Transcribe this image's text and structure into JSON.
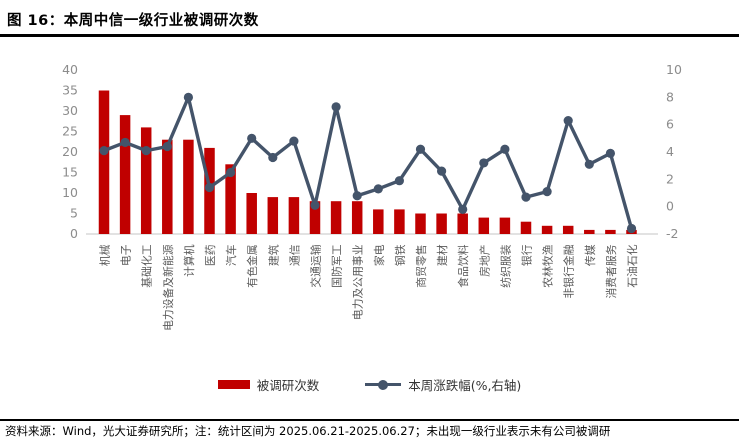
{
  "title": "图 16：本周中信一级行业被调研次数",
  "legend": {
    "bar_label": "被调研次数",
    "line_label": "本周涨跌幅(%,右轴)"
  },
  "footer": "资料来源：Wind，光大证券研究所；注：统计区间为 2025.06.21-2025.06.27；未出现一级行业表示未有公司被调研",
  "colors": {
    "bar": "#C00000",
    "line": "#44546A",
    "axis_tick_text": "#8C8C8C",
    "category_text": "#595959",
    "axis_line": "#D9D9D9"
  },
  "chart_data": {
    "type": "bar",
    "subtype": "bar+line combo, dual axis",
    "categories": [
      "机械",
      "电子",
      "基础化工",
      "电力设备及新能源",
      "计算机",
      "医药",
      "汽车",
      "有色金属",
      "建筑",
      "通信",
      "交通运输",
      "国防军工",
      "电力及公用事业",
      "家电",
      "钢铁",
      "商贸零售",
      "建材",
      "食品饮料",
      "房地产",
      "纺织服装",
      "银行",
      "农林牧渔",
      "非银行金融",
      "传媒",
      "消费者服务",
      "石油石化"
    ],
    "series": [
      {
        "name": "被调研次数",
        "type": "bar",
        "axis": "left",
        "values": [
          35,
          29,
          26,
          23,
          23,
          21,
          17,
          10,
          9,
          9,
          8,
          8,
          8,
          6,
          6,
          5,
          5,
          5,
          4,
          4,
          3,
          2,
          2,
          1,
          1,
          1
        ]
      },
      {
        "name": "本周涨跌幅(%,右轴)",
        "type": "line",
        "axis": "right",
        "values": [
          4.1,
          4.7,
          4.1,
          4.4,
          8.0,
          1.4,
          2.5,
          5.0,
          3.6,
          4.8,
          0.1,
          7.3,
          0.8,
          1.3,
          1.9,
          4.2,
          2.6,
          -0.2,
          3.2,
          4.2,
          0.7,
          1.1,
          6.3,
          3.1,
          3.9,
          -1.6
        ]
      }
    ],
    "title": "本周中信一级行业被调研次数",
    "xlabel": "",
    "ylabel_left": "",
    "ylabel_right": "",
    "left_axis": {
      "min": 0,
      "max": 40,
      "ticks": [
        40,
        35,
        30,
        25,
        20,
        15,
        10,
        5,
        0
      ]
    },
    "right_axis": {
      "min": -2,
      "max": 10,
      "ticks": [
        10,
        8,
        6,
        4,
        2,
        0,
        -2
      ]
    },
    "grid": false,
    "legend_position": "bottom-center"
  }
}
